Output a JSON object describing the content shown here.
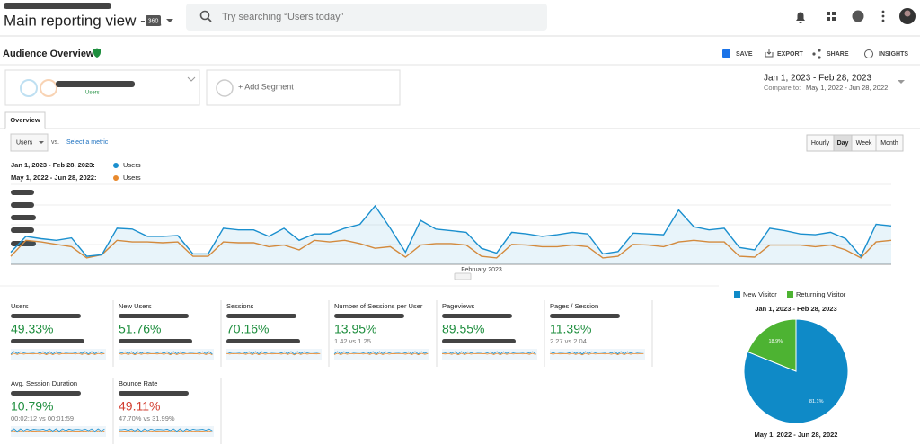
{
  "header": {
    "title": "Main reporting view - ...",
    "badge": "360",
    "search_placeholder": "Try searching “Users today”"
  },
  "toolbar": {
    "title": "Audience Overview",
    "actions": [
      "SAVE",
      "EXPORT",
      "SHARE",
      "INSIGHTS"
    ]
  },
  "segments": {
    "primary": "Users",
    "add": "+ Add Segment"
  },
  "date_range": {
    "current": "Jan 1, 2023 - Feb 28, 2023",
    "compare_label": "Compare to:",
    "compare": "May 1, 2022 - Jun 28, 2022"
  },
  "tab": "Overview",
  "metric_picker": {
    "metric": "Users",
    "vs": "vs.",
    "select": "Select a metric"
  },
  "granularity": {
    "options": [
      "Hourly",
      "Day",
      "Week",
      "Month"
    ],
    "selected": 1
  },
  "trend_chart": {
    "x_label": "February 2023",
    "ylim": [
      0,
      100
    ],
    "series": [
      {
        "period": "Jan 1, 2023 - Feb 28, 2023:",
        "name": "Users",
        "color": "#1a8fce",
        "values": [
          15,
          35,
          32,
          30,
          33,
          10,
          12,
          45,
          44,
          35,
          35,
          36,
          13,
          13,
          45,
          43,
          43,
          35,
          45,
          30,
          38,
          38,
          45,
          50,
          73,
          45,
          15,
          55,
          44,
          42,
          40,
          20,
          14,
          40,
          38,
          35,
          37,
          40,
          38,
          13,
          16,
          39,
          38,
          37,
          68,
          47,
          43,
          45,
          21,
          18,
          45,
          42,
          38,
          37,
          40,
          32,
          10,
          50,
          48
        ]
      },
      {
        "period": "May 1, 2022 - Jun 28, 2022:",
        "name": "Users",
        "color": "#e8892d",
        "values": [
          10,
          30,
          28,
          25,
          22,
          8,
          12,
          30,
          28,
          28,
          27,
          28,
          10,
          10,
          28,
          27,
          27,
          22,
          24,
          18,
          30,
          28,
          30,
          26,
          20,
          22,
          9,
          24,
          26,
          26,
          24,
          10,
          8,
          25,
          24,
          22,
          22,
          24,
          22,
          8,
          10,
          25,
          24,
          22,
          28,
          30,
          28,
          28,
          10,
          9,
          24,
          24,
          24,
          22,
          24,
          18,
          8,
          28,
          30
        ]
      }
    ]
  },
  "tiles": [
    {
      "label": "Users",
      "change": "49.33%",
      "color": "#1e8e3e"
    },
    {
      "label": "New Users",
      "change": "51.76%",
      "color": "#1e8e3e"
    },
    {
      "label": "Sessions",
      "change": "70.16%",
      "color": "#1e8e3e"
    },
    {
      "label": "Number of Sessions per User",
      "change": "13.95%",
      "comparison": "1.42 vs 1.25",
      "color": "#1e8e3e"
    },
    {
      "label": "Pageviews",
      "change": "89.55%",
      "color": "#1e8e3e"
    },
    {
      "label": "Pages / Session",
      "change": "11.39%",
      "comparison": "2.27 vs 2.04",
      "color": "#1e8e3e"
    },
    {
      "label": "Avg. Session Duration",
      "change": "10.79%",
      "comparison": "00:02:12 vs 00:01:59",
      "color": "#1e8e3e"
    },
    {
      "label": "Bounce Rate",
      "change": "49.11%",
      "comparison": "47.70% vs 31.99%",
      "color": "#d23f31"
    }
  ],
  "pie_chart": {
    "type": "pie",
    "title": "Jan 1, 2023 - Feb 28, 2023",
    "caption": "May 1, 2022 - Jun 28, 2022",
    "categories": [
      "New Visitor",
      "Returning Visitor"
    ],
    "colors": [
      "#0f8ac7",
      "#4db332"
    ],
    "values": [
      81.1,
      18.9
    ],
    "value_labels": [
      "81.1%",
      "18.9%"
    ]
  }
}
